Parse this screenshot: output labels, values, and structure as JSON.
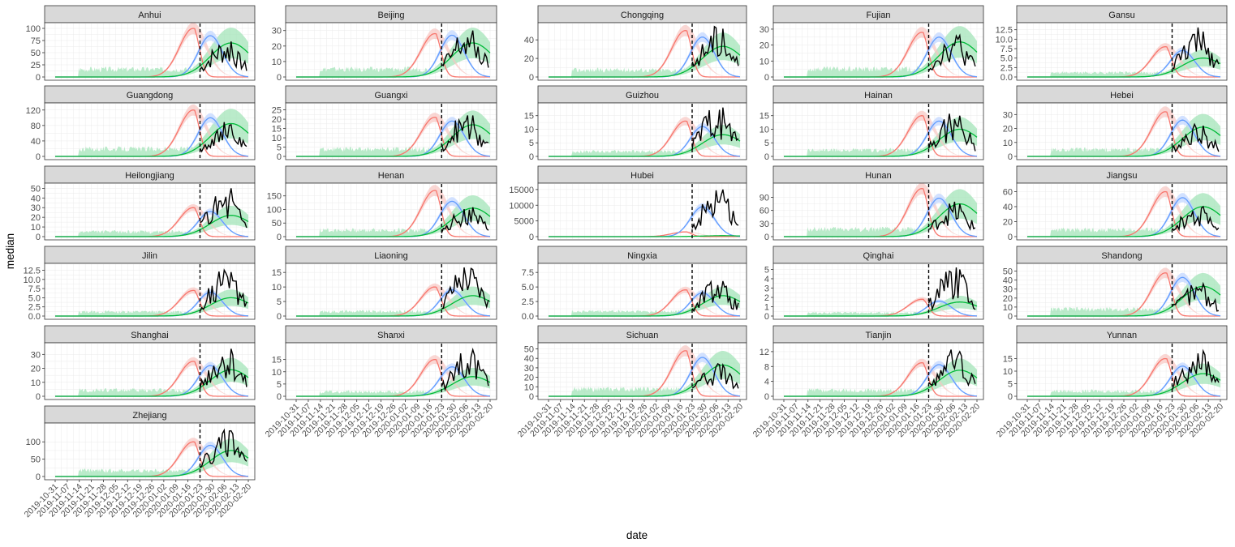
{
  "chart_data": {
    "type": "line",
    "xlabel": "date",
    "ylabel": "median",
    "x_ticks": [
      "2019-10-31",
      "2019-11-07",
      "2019-11-14",
      "2019-11-21",
      "2019-11-28",
      "2019-12-05",
      "2019-12-12",
      "2019-12-19",
      "2019-12-26",
      "2020-01-02",
      "2020-01-09",
      "2020-01-16",
      "2020-01-23",
      "2020-01-30",
      "2020-02-06",
      "2020-02-13",
      "2020-02-20"
    ],
    "x_range": [
      "2019-10-31",
      "2020-02-20"
    ],
    "reference_date": "2020-01-23",
    "series_colors": {
      "red": "#F8766D",
      "blue": "#619CFF",
      "green": "#00BA38",
      "observed": "#000000",
      "ribbon_red": "#F8C6C2",
      "ribbon_blue": "#BFD4FF",
      "ribbon_green": "#A3E4B8"
    },
    "panels": [
      {
        "name": "Anhui",
        "ymax": 105,
        "y_ticks": [
          "0",
          "25",
          "50",
          "75",
          "100"
        ],
        "y_values": [
          0,
          25,
          50,
          75,
          100
        ],
        "peaks": {
          "red": 100,
          "blue": 85,
          "green": 70,
          "obs": 73
        }
      },
      {
        "name": "Beijing",
        "ymax": 33,
        "y_ticks": [
          "0",
          "10",
          "20",
          "30"
        ],
        "y_values": [
          0,
          10,
          20,
          30
        ],
        "peaks": {
          "red": 28,
          "blue": 27,
          "green": 22,
          "obs": 30
        }
      },
      {
        "name": "Chongqing",
        "ymax": 55,
        "y_ticks": [
          "0",
          "20",
          "40"
        ],
        "y_values": [
          0,
          20,
          40
        ],
        "peaks": {
          "red": 50,
          "blue": 43,
          "green": 33,
          "obs": 52
        }
      },
      {
        "name": "Fujian",
        "ymax": 32,
        "y_ticks": [
          "0",
          "10",
          "20",
          "30"
        ],
        "y_values": [
          0,
          10,
          20,
          30
        ],
        "peaks": {
          "red": 28,
          "blue": 25,
          "green": 22,
          "obs": 26
        }
      },
      {
        "name": "Gansu",
        "ymax": 13.5,
        "y_ticks": [
          "0.0",
          "2.5",
          "5.0",
          "7.5",
          "10.0",
          "12.5"
        ],
        "y_values": [
          0,
          2.5,
          5,
          7.5,
          10,
          12.5
        ],
        "peaks": {
          "red": 8,
          "blue": 7,
          "green": 5,
          "obs": 12
        }
      },
      {
        "name": "Guangdong",
        "ymax": 130,
        "y_ticks": [
          "0",
          "40",
          "80",
          "120"
        ],
        "y_values": [
          0,
          40,
          80,
          120
        ],
        "peaks": {
          "red": 120,
          "blue": 100,
          "green": 85,
          "obs": 82
        }
      },
      {
        "name": "Guangxi",
        "ymax": 27,
        "y_ticks": [
          "0",
          "5",
          "10",
          "15",
          "20",
          "25"
        ],
        "y_values": [
          0,
          5,
          10,
          15,
          20,
          25
        ],
        "peaks": {
          "red": 21,
          "blue": 19,
          "green": 17,
          "obs": 22
        }
      },
      {
        "name": "Guizhou",
        "ymax": 18.5,
        "y_ticks": [
          "0",
          "5",
          "10",
          "15"
        ],
        "y_values": [
          0,
          5,
          10,
          15
        ],
        "peaks": {
          "red": 13,
          "blue": 11,
          "green": 8,
          "obs": 18
        }
      },
      {
        "name": "Hainan",
        "ymax": 18.5,
        "y_ticks": [
          "0",
          "5",
          "10",
          "15"
        ],
        "y_values": [
          0,
          5,
          10,
          15
        ],
        "peaks": {
          "red": 15,
          "blue": 13,
          "green": 10,
          "obs": 15
        }
      },
      {
        "name": "Hebei",
        "ymax": 36,
        "y_ticks": [
          "0",
          "10",
          "20",
          "30"
        ],
        "y_values": [
          0,
          10,
          20,
          30
        ],
        "peaks": {
          "red": 32,
          "blue": 26,
          "green": 21,
          "obs": 22
        }
      },
      {
        "name": "Heilongjiang",
        "ymax": 52,
        "y_ticks": [
          "0",
          "10",
          "20",
          "30",
          "40",
          "50"
        ],
        "y_values": [
          0,
          10,
          20,
          30,
          40,
          50
        ],
        "peaks": {
          "red": 30,
          "blue": 26,
          "green": 22,
          "obs": 50
        }
      },
      {
        "name": "Henan",
        "ymax": 185,
        "y_ticks": [
          "0",
          "50",
          "100",
          "150"
        ],
        "y_values": [
          0,
          50,
          100,
          150
        ],
        "peaks": {
          "red": 170,
          "blue": 130,
          "green": 105,
          "obs": 108
        }
      },
      {
        "name": "Hubei",
        "ymax": 16000,
        "y_ticks": [
          "0",
          "5000",
          "10000",
          "15000"
        ],
        "y_values": [
          0,
          5000,
          10000,
          15000
        ],
        "peaks": {
          "red": 1500,
          "blue": 9500,
          "green": 300,
          "obs": 15000
        }
      },
      {
        "name": "Hunan",
        "ymax": 115,
        "y_ticks": [
          "0",
          "30",
          "60",
          "90"
        ],
        "y_values": [
          0,
          30,
          60,
          90
        ],
        "peaks": {
          "red": 110,
          "blue": 88,
          "green": 75,
          "obs": 75
        }
      },
      {
        "name": "Jiangsu",
        "ymax": 67,
        "y_ticks": [
          "0",
          "20",
          "40",
          "60"
        ],
        "y_values": [
          0,
          20,
          40,
          60
        ],
        "peaks": {
          "red": 60,
          "blue": 52,
          "green": 40,
          "obs": 40
        }
      },
      {
        "name": "Jilin",
        "ymax": 13.5,
        "y_ticks": [
          "0.0",
          "2.5",
          "5.0",
          "7.5",
          "10.0",
          "12.5"
        ],
        "y_values": [
          0,
          2.5,
          5,
          7.5,
          10,
          12.5
        ],
        "peaks": {
          "red": 7,
          "blue": 6.5,
          "green": 5,
          "obs": 12
        }
      },
      {
        "name": "Liaoning",
        "ymax": 17,
        "y_ticks": [
          "0",
          "5",
          "10",
          "15"
        ],
        "y_values": [
          0,
          5,
          10,
          15
        ],
        "peaks": {
          "red": 10,
          "blue": 9,
          "green": 7,
          "obs": 16
        }
      },
      {
        "name": "Ningxia",
        "ymax": 8.5,
        "y_ticks": [
          "0.0",
          "2.5",
          "5.0",
          "7.5"
        ],
        "y_values": [
          0,
          2.5,
          5,
          7.5
        ],
        "peaks": {
          "red": 4.5,
          "blue": 4,
          "green": 3.5,
          "obs": 6
        }
      },
      {
        "name": "Qinghai",
        "ymax": 5.3,
        "y_ticks": [
          "0",
          "1",
          "2",
          "3",
          "4",
          "5"
        ],
        "y_values": [
          0,
          1,
          2,
          3,
          4,
          5
        ],
        "peaks": {
          "red": 1.8,
          "blue": 1.6,
          "green": 1.5,
          "obs": 5
        }
      },
      {
        "name": "Shandong",
        "ymax": 55,
        "y_ticks": [
          "0",
          "10",
          "20",
          "30",
          "40",
          "50"
        ],
        "y_values": [
          0,
          10,
          20,
          30,
          40,
          50
        ],
        "peaks": {
          "red": 48,
          "blue": 43,
          "green": 33,
          "obs": 36
        }
      },
      {
        "name": "Shanghai",
        "ymax": 36,
        "y_ticks": [
          "0",
          "10",
          "20",
          "30"
        ],
        "y_values": [
          0,
          10,
          20,
          30
        ],
        "peaks": {
          "red": 25,
          "blue": 22,
          "green": 19,
          "obs": 34
        }
      },
      {
        "name": "Shanxi",
        "ymax": 20.5,
        "y_ticks": [
          "0",
          "5",
          "10",
          "15"
        ],
        "y_values": [
          0,
          5,
          10,
          15
        ],
        "peaks": {
          "red": 15,
          "blue": 12,
          "green": 8,
          "obs": 19
        }
      },
      {
        "name": "Sichuan",
        "ymax": 53,
        "y_ticks": [
          "0",
          "10",
          "20",
          "30",
          "40",
          "50"
        ],
        "y_values": [
          0,
          10,
          20,
          30,
          40,
          50
        ],
        "peaks": {
          "red": 48,
          "blue": 41,
          "green": 33,
          "obs": 33
        }
      },
      {
        "name": "Tianjin",
        "ymax": 13.5,
        "y_ticks": [
          "0",
          "4",
          "8",
          "12"
        ],
        "y_values": [
          0,
          4,
          8,
          12
        ],
        "peaks": {
          "red": 9,
          "blue": 8.5,
          "green": 7,
          "obs": 12
        }
      },
      {
        "name": "Yunnan",
        "ymax": 20,
        "y_ticks": [
          "0",
          "5",
          "10",
          "15"
        ],
        "y_values": [
          0,
          5,
          10,
          15
        ],
        "peaks": {
          "red": 15,
          "blue": 12,
          "green": 9,
          "obs": 18
        }
      },
      {
        "name": "Zhejiang",
        "ymax": 145,
        "y_ticks": [
          "0",
          "50",
          "100"
        ],
        "y_values": [
          0,
          50,
          100
        ],
        "peaks": {
          "red": 100,
          "blue": 90,
          "green": 75,
          "obs": 132
        }
      }
    ]
  }
}
